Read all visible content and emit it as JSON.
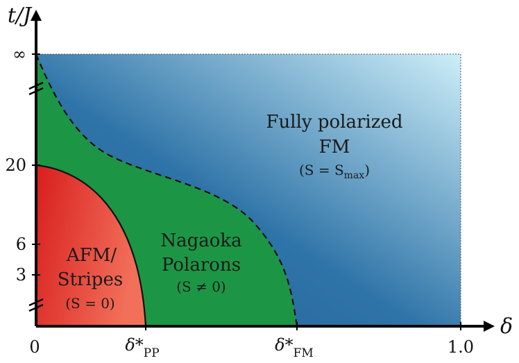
{
  "chart_data": {
    "type": "phase-diagram",
    "xlabel": "δ",
    "ylabel": "t/J",
    "x_ticks": [
      {
        "label_main": "0",
        "label_sub": ""
      },
      {
        "label_main": "δ*",
        "label_sub": "PP"
      },
      {
        "label_main": "δ*",
        "label_sub": "FM"
      },
      {
        "label_main": "1.0",
        "label_sub": ""
      }
    ],
    "y_ticks": [
      "3",
      "6",
      "20",
      "∞"
    ],
    "regions": [
      {
        "name": "afm-stripes",
        "line1": "AFM/",
        "line2": "Stripes",
        "sub": "(S = 0)",
        "color_dark": "#d81e1e",
        "color_light": "#f2705a"
      },
      {
        "name": "nagaoka-polarons",
        "line1": "Nagaoka",
        "line2": "Polarons",
        "sub": "(S ≠ 0)",
        "color": "#1c9645"
      },
      {
        "name": "fully-polarized-fm",
        "line1": "Fully polarized",
        "line2": "FM",
        "sub": "(S = S",
        "sub_sub": "max",
        "sub_end": ")",
        "color_dark": "#1f5f96",
        "color_light": "#cdeef8"
      }
    ]
  }
}
